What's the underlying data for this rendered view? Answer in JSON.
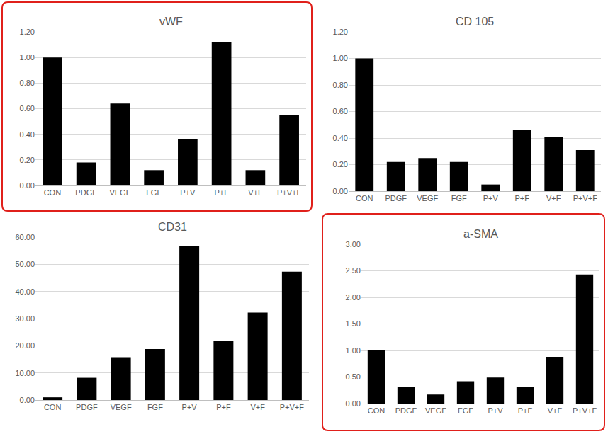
{
  "chart_data": [
    {
      "type": "bar",
      "title": "vWF",
      "categories": [
        "CON",
        "PDGF",
        "VEGF",
        "FGF",
        "P+V",
        "P+F",
        "V+F",
        "P+V+F"
      ],
      "values": [
        1.0,
        0.18,
        0.64,
        0.12,
        0.36,
        1.12,
        0.12,
        0.55
      ],
      "color": "#000000",
      "ylim": [
        0,
        1.2
      ],
      "yticks": [
        {
          "value": 0,
          "label": "0.00"
        },
        {
          "value": 0.2,
          "label": "0.20"
        },
        {
          "value": 0.4,
          "label": "0.40"
        },
        {
          "value": 0.6,
          "label": "0.60"
        },
        {
          "value": 0.8,
          "label": "0.80"
        },
        {
          "value": 1.0,
          "label": "1.00"
        },
        {
          "value": 1.2,
          "label": "1.20"
        }
      ],
      "grid": true
    },
    {
      "type": "bar",
      "title": "CD 105",
      "categories": [
        "CON",
        "PDGF",
        "VEGF",
        "FGF",
        "P+V",
        "P+F",
        "V+F",
        "P+V+F"
      ],
      "values": [
        1.0,
        0.22,
        0.25,
        0.22,
        0.05,
        0.46,
        0.41,
        0.31
      ],
      "color": "#000000",
      "ylim": [
        0,
        1.2
      ],
      "yticks": [
        {
          "value": 0,
          "label": "0.00"
        },
        {
          "value": 0.2,
          "label": "0.20"
        },
        {
          "value": 0.4,
          "label": "0.40"
        },
        {
          "value": 0.6,
          "label": "0.60"
        },
        {
          "value": 0.8,
          "label": "0.80"
        },
        {
          "value": 1.0,
          "label": "1.00"
        },
        {
          "value": 1.2,
          "label": "1.20"
        }
      ],
      "grid": true
    },
    {
      "type": "bar",
      "title": "CD31",
      "categories": [
        "CON",
        "PDGF",
        "VEGF",
        "FGF",
        "P+V",
        "P+F",
        "V+F",
        "P+V+F"
      ],
      "values": [
        1.0,
        8.2,
        15.8,
        18.8,
        56.7,
        21.8,
        32.2,
        47.3
      ],
      "color": "#000000",
      "ylim": [
        0,
        60
      ],
      "yticks": [
        {
          "value": 0,
          "label": "0.00"
        },
        {
          "value": 10,
          "label": "10.00"
        },
        {
          "value": 20,
          "label": "20.00"
        },
        {
          "value": 30,
          "label": "30.00"
        },
        {
          "value": 40,
          "label": "40.00"
        },
        {
          "value": 50,
          "label": "50.00"
        },
        {
          "value": 60,
          "label": "60.00"
        }
      ],
      "grid": true
    },
    {
      "type": "bar",
      "title": "a-SMA",
      "categories": [
        "CON",
        "PDGF",
        "VEGF",
        "FGF",
        "P+V",
        "P+F",
        "V+F",
        "P+V+F"
      ],
      "values": [
        1.0,
        0.31,
        0.17,
        0.42,
        0.49,
        0.31,
        0.88,
        2.43
      ],
      "color": "#000000",
      "ylim": [
        0,
        3
      ],
      "yticks": [
        {
          "value": 0,
          "label": "0.00"
        },
        {
          "value": 0.5,
          "label": "0.50"
        },
        {
          "value": 1.0,
          "label": "1.00"
        },
        {
          "value": 1.5,
          "label": "1.50"
        },
        {
          "value": 2.0,
          "label": "2.00"
        },
        {
          "value": 2.5,
          "label": "2.50"
        },
        {
          "value": 3.0,
          "label": "3.00"
        }
      ],
      "grid": true
    }
  ]
}
